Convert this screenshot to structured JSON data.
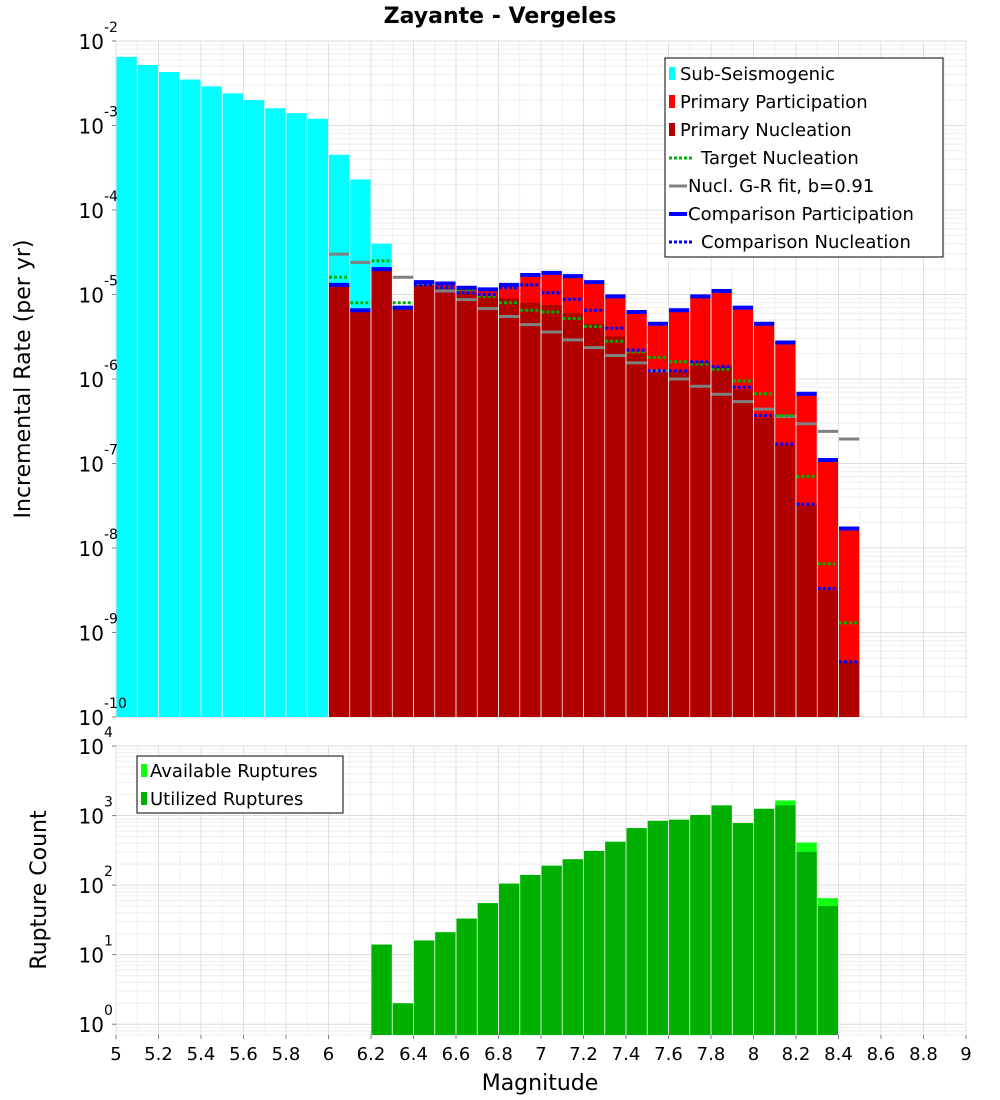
{
  "chart_data": [
    {
      "type": "bar",
      "title": "Zayante - Vergeles",
      "xlabel": "",
      "ylabel": "Incremental Rate (per yr)",
      "yscale": "log",
      "ylim": [
        1e-10,
        0.01
      ],
      "xlim": [
        5,
        9
      ],
      "x_ticks": [
        "5",
        "5.2",
        "5.4",
        "5.6",
        "5.8",
        "6",
        "6.2",
        "6.4",
        "6.6",
        "6.8",
        "7",
        "7.2",
        "7.4",
        "7.6",
        "7.8",
        "8",
        "8.2",
        "8.4",
        "8.6",
        "8.8",
        "9"
      ],
      "y_tick_base": "10",
      "y_tick_exponents": [
        "-10",
        "-9",
        "-8",
        "-7",
        "-6",
        "-5",
        "-4",
        "-3",
        "-2"
      ],
      "legend": [
        "Sub-Seismogenic",
        "Primary Participation",
        "Primary Nucleation",
        "Target Nucleation",
        "Nucl. G-R fit, b=0.91",
        "Comparison Participation",
        "Comparison Nucleation"
      ],
      "legend_position": "top-right",
      "colors": {
        "sub_seismogenic": "#00ffff",
        "primary_participation": "#ff0000",
        "primary_nucleation": "#b00000",
        "target_nucleation": "#00b000",
        "gr_fit": "#808080",
        "comparison_participation": "#0000ff",
        "comparison_nucleation": "#0000ff"
      },
      "sub_seismogenic": {
        "x": [
          5.05,
          5.15,
          5.25,
          5.35,
          5.45,
          5.55,
          5.65,
          5.75,
          5.85,
          5.95,
          6.05,
          6.15,
          6.25
        ],
        "values": [
          0.0065,
          0.0052,
          0.0043,
          0.0035,
          0.0029,
          0.0024,
          0.002,
          0.0016,
          0.0014,
          0.0012,
          0.00045,
          0.00023,
          4e-05
        ]
      },
      "primary_participation": {
        "x": [
          6.05,
          6.15,
          6.25,
          6.35,
          6.45,
          6.55,
          6.65,
          6.75,
          6.85,
          6.95,
          7.05,
          7.15,
          7.25,
          7.35,
          7.45,
          7.55,
          7.65,
          7.75,
          7.85,
          7.95,
          8.05,
          8.15,
          8.25,
          8.35,
          8.45
        ],
        "values": [
          1.3e-05,
          6.5e-06,
          2e-05,
          7e-06,
          1.4e-05,
          1.35e-05,
          1.2e-05,
          1.15e-05,
          1.3e-05,
          1.7e-05,
          1.8e-05,
          1.65e-05,
          1.4e-05,
          9.5e-06,
          6.2e-06,
          4.5e-06,
          6.5e-06,
          9.5e-06,
          1.1e-05,
          7e-06,
          4.5e-06,
          2.7e-06,
          6.7e-07,
          1.1e-07,
          1.7e-08
        ]
      },
      "primary_nucleation": {
        "x": [
          6.05,
          6.15,
          6.25,
          6.35,
          6.45,
          6.55,
          6.65,
          6.75,
          6.85,
          6.95,
          7.05,
          7.15,
          7.25,
          7.35,
          7.45,
          7.55,
          7.65,
          7.75,
          7.85,
          7.95,
          8.05,
          8.15,
          8.25,
          8.35,
          8.45
        ],
        "values": [
          1.3e-05,
          6.5e-06,
          2e-05,
          7e-06,
          1.3e-05,
          1.2e-05,
          1.05e-05,
          9.5e-06,
          9e-06,
          8e-06,
          7.5e-06,
          6e-06,
          4.5e-06,
          3.2e-06,
          2e-06,
          1.25e-06,
          1.25e-06,
          1.6e-06,
          1.4e-06,
          7.5e-07,
          3.5e-07,
          1.65e-07,
          3.2e-08,
          3.2e-09,
          4.5e-10
        ]
      },
      "target_nucleation": {
        "x": [
          6.05,
          6.15,
          6.25,
          6.35,
          6.45,
          6.55,
          6.65,
          6.75,
          6.85,
          6.95,
          7.05,
          7.15,
          7.25,
          7.35,
          7.45,
          7.55,
          7.65,
          7.75,
          7.85,
          7.95,
          8.05,
          8.15,
          8.25,
          8.35,
          8.45
        ],
        "values": [
          1.6e-05,
          8e-06,
          2.5e-05,
          8e-06,
          1.35e-05,
          1.2e-05,
          1.1e-05,
          9.5e-06,
          8e-06,
          6.5e-06,
          6.2e-06,
          5.2e-06,
          4.2e-06,
          2.8e-06,
          2.1e-06,
          1.8e-06,
          1.6e-06,
          1.5e-06,
          1.3e-06,
          9.5e-07,
          6.7e-07,
          3.7e-07,
          7e-08,
          6.5e-09,
          1.3e-09
        ]
      },
      "gr_fit": {
        "x": [
          6.05,
          6.15,
          6.25,
          6.35,
          6.45,
          6.55,
          6.65,
          6.75,
          6.85,
          6.95,
          7.05,
          7.15,
          7.25,
          7.35,
          7.45,
          7.55,
          7.65,
          7.75,
          7.85,
          7.95,
          8.05,
          8.15,
          8.25,
          8.35,
          8.45
        ],
        "values": [
          3e-05,
          2.4e-05,
          2e-05,
          1.6e-05,
          1.35e-05,
          1.1e-05,
          8.7e-06,
          6.8e-06,
          5.5e-06,
          4.4e-06,
          3.6e-06,
          2.9e-06,
          2.35e-06,
          1.9e-06,
          1.55e-06,
          1.25e-06,
          1e-06,
          8.2e-07,
          6.6e-07,
          5.4e-07,
          4.4e-07,
          3.6e-07,
          2.95e-07,
          2.4e-07,
          1.95e-07
        ]
      },
      "comparison_participation": {
        "x": [
          6.05,
          6.15,
          6.25,
          6.35,
          6.45,
          6.55,
          6.65,
          6.75,
          6.85,
          6.95,
          7.05,
          7.15,
          7.25,
          7.35,
          7.45,
          7.55,
          7.65,
          7.75,
          7.85,
          7.95,
          8.05,
          8.15,
          8.25,
          8.35,
          8.45
        ],
        "values": [
          1.3e-05,
          6.5e-06,
          2e-05,
          7e-06,
          1.4e-05,
          1.35e-05,
          1.2e-05,
          1.15e-05,
          1.3e-05,
          1.7e-05,
          1.8e-05,
          1.65e-05,
          1.4e-05,
          9.5e-06,
          6.2e-06,
          4.5e-06,
          6.5e-06,
          9.5e-06,
          1.1e-05,
          7e-06,
          4.5e-06,
          2.7e-06,
          6.7e-07,
          1.1e-07,
          1.7e-08
        ]
      },
      "comparison_nucleation": {
        "x": [
          6.05,
          6.15,
          6.25,
          6.35,
          6.45,
          6.55,
          6.65,
          6.75,
          6.85,
          6.95,
          7.05,
          7.15,
          7.25,
          7.35,
          7.45,
          7.55,
          7.65,
          7.75,
          7.85,
          7.95,
          8.05,
          8.15,
          8.25,
          8.35,
          8.45
        ],
        "values": [
          1.3e-05,
          6.5e-06,
          2e-05,
          7e-06,
          1.3e-05,
          1.2e-05,
          1.05e-05,
          1e-05,
          1.2e-05,
          1.3e-05,
          1.05e-05,
          8.8e-06,
          6.5e-06,
          4e-06,
          2.2e-06,
          1.25e-06,
          1.25e-06,
          1.6e-06,
          1.4e-06,
          8e-07,
          3.7e-07,
          1.7e-07,
          3.3e-08,
          3.3e-09,
          4.5e-10
        ]
      }
    },
    {
      "type": "bar",
      "title": "",
      "xlabel": "Magnitude",
      "ylabel": "Rupture Count",
      "yscale": "log",
      "ylim": [
        0.7,
        10000
      ],
      "xlim": [
        5,
        9
      ],
      "y_tick_base": "10",
      "y_tick_exponents": [
        "0",
        "1",
        "2",
        "3",
        "4"
      ],
      "legend": [
        "Available Ruptures",
        "Utilized Ruptures"
      ],
      "legend_position": "top-left",
      "colors": {
        "available": "#10ff10",
        "utilized": "#00b000"
      },
      "available_ruptures": {
        "x": [
          6.25,
          6.35,
          6.45,
          6.55,
          6.65,
          6.75,
          6.85,
          6.95,
          7.05,
          7.15,
          7.25,
          7.35,
          7.45,
          7.55,
          7.65,
          7.75,
          7.85,
          7.95,
          8.05,
          8.15,
          8.25,
          8.35
        ],
        "values": [
          14,
          2,
          16,
          21,
          33,
          55,
          105,
          140,
          190,
          235,
          310,
          420,
          660,
          840,
          870,
          1020,
          1400,
          780,
          1250,
          1650,
          410,
          65
        ]
      },
      "utilized_ruptures": {
        "x": [
          6.25,
          6.35,
          6.45,
          6.55,
          6.65,
          6.75,
          6.85,
          6.95,
          7.05,
          7.15,
          7.25,
          7.35,
          7.45,
          7.55,
          7.65,
          7.75,
          7.85,
          7.95,
          8.05,
          8.15,
          8.25,
          8.35
        ],
        "values": [
          14,
          2,
          16,
          21,
          33,
          55,
          105,
          140,
          190,
          235,
          310,
          420,
          660,
          840,
          870,
          1020,
          1400,
          780,
          1250,
          1400,
          300,
          50
        ]
      }
    }
  ]
}
